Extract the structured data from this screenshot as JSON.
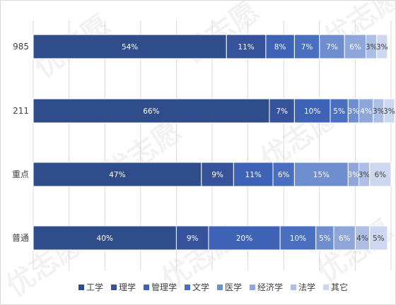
{
  "chart_data": {
    "type": "bar",
    "orientation": "horizontal",
    "stacked": true,
    "categories": [
      "985",
      "211",
      "重点",
      "普通"
    ],
    "series": [
      {
        "name": "工学",
        "color": "#2f4d8a",
        "values": [
          54,
          66,
          47,
          40
        ]
      },
      {
        "name": "理学",
        "color": "#35529a",
        "values": [
          11,
          7,
          9,
          9
        ]
      },
      {
        "name": "管理学",
        "color": "#3d62b6",
        "values": [
          8,
          10,
          11,
          20
        ]
      },
      {
        "name": "文学",
        "color": "#4a6fc0",
        "values": [
          7,
          5,
          6,
          10
        ]
      },
      {
        "name": "医学",
        "color": "#6f8ecf",
        "values": [
          7,
          3,
          15,
          5
        ]
      },
      {
        "name": "经济学",
        "color": "#8ea6da",
        "values": [
          6,
          4,
          3,
          6
        ]
      },
      {
        "name": "法学",
        "color": "#adbfe5",
        "values": [
          3,
          3,
          3,
          4
        ]
      },
      {
        "name": "其它",
        "color": "#cdd8f0",
        "values": [
          3,
          3,
          6,
          5
        ]
      }
    ],
    "data_label_suffix": "%",
    "xlim": [
      0,
      100
    ],
    "grid": true,
    "legend": "bottom"
  },
  "watermark": "优志愿"
}
